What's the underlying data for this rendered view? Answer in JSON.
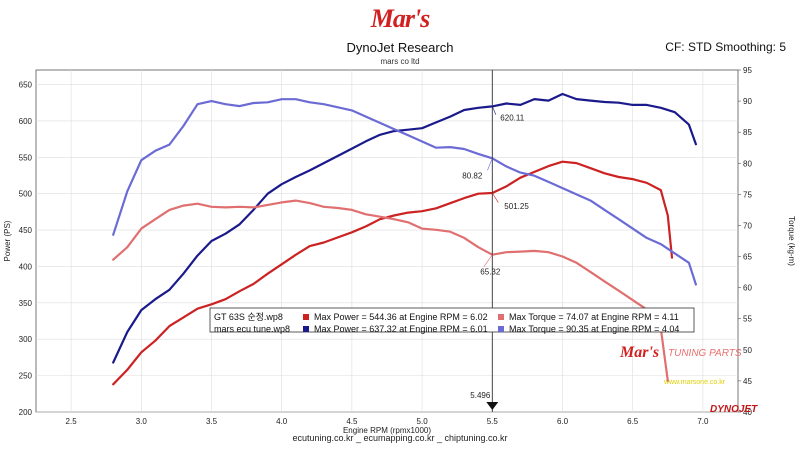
{
  "header": {
    "logo_text": "Mar's",
    "title": "DynoJet Research",
    "subtitle": "mars co ltd",
    "right_info": "CF: STD Smoothing: 5"
  },
  "footer": {
    "text": "ecutuning.co.kr _ ecumapping.co.kr _ chiptuning.co.kr"
  },
  "watermark": {
    "brand": "Mar's",
    "text": "TUNING PARTS",
    "url": "www.marsone.co.kr"
  },
  "dynojet_logo": "DYNOJET",
  "chart_data": {
    "type": "line",
    "xlabel": "Engine RPM (rpmx1000)",
    "ylabel_left": "Power (PS)",
    "ylabel_right": "Torque (kg-m)",
    "xlim": [
      2.25,
      7.25
    ],
    "ylim_left": [
      200,
      670
    ],
    "ylim_right": [
      40,
      95
    ],
    "x_ticks": [
      2.5,
      3.0,
      3.5,
      4.0,
      4.5,
      5.0,
      5.5,
      6.0,
      6.5,
      7.0
    ],
    "y_left_ticks": [
      200,
      250,
      300,
      350,
      400,
      450,
      500,
      550,
      600,
      650
    ],
    "y_right_ticks": [
      40,
      45,
      50,
      55,
      60,
      65,
      70,
      75,
      80,
      85,
      90,
      95
    ],
    "grid": true,
    "cursor": {
      "x": 5.5,
      "label": "5.496"
    },
    "cursor_values": [
      {
        "series": "mars ecu tune.wp8 power",
        "value": "620.11",
        "color": "#1a1a8c"
      },
      {
        "series": "mars ecu tune.wp8 torque",
        "value": "80.82",
        "color": "#6b6bd6"
      },
      {
        "series": "GT 63S power",
        "value": "501.25",
        "color": "#cc2222"
      },
      {
        "series": "GT 63S torque",
        "value": "65.32",
        "color": "#e07070"
      }
    ],
    "legend": [
      {
        "run": "GT 63S 순정.wp8",
        "power": "Max Power = 544.36 at Engine RPM = 6.02",
        "torque": "Max Torque = 74.07 at Engine RPM = 4.11",
        "power_color": "#cc2222",
        "torque_color": "#e07070"
      },
      {
        "run": "mars ecu tune.wp8",
        "power": "Max Power = 637.32 at Engine RPM = 6.01",
        "torque": "Max Torque = 90.35 at Engine RPM = 4.04",
        "power_color": "#1a1a8c",
        "torque_color": "#6b6bd6"
      }
    ],
    "series": [
      {
        "axis": "left",
        "color": "#1a1a8c",
        "x": [
          2.8,
          2.9,
          3.0,
          3.1,
          3.2,
          3.3,
          3.4,
          3.5,
          3.6,
          3.7,
          3.8,
          3.9,
          4.0,
          4.1,
          4.2,
          4.3,
          4.4,
          4.5,
          4.6,
          4.7,
          4.8,
          4.9,
          5.0,
          5.1,
          5.2,
          5.3,
          5.4,
          5.5,
          5.6,
          5.7,
          5.8,
          5.9,
          6.0,
          6.1,
          6.2,
          6.3,
          6.4,
          6.5,
          6.6,
          6.7,
          6.8,
          6.9,
          6.95
        ],
        "y": [
          268,
          310,
          340,
          355,
          368,
          390,
          415,
          435,
          445,
          458,
          478,
          500,
          513,
          523,
          532,
          542,
          552,
          562,
          572,
          581,
          586,
          588,
          590,
          598,
          606,
          615,
          618,
          620,
          624,
          622,
          630,
          628,
          637,
          630,
          628,
          626,
          625,
          622,
          622,
          618,
          612,
          595,
          568
        ]
      },
      {
        "axis": "left",
        "color": "#cc2222",
        "x": [
          2.8,
          2.9,
          3.0,
          3.1,
          3.2,
          3.3,
          3.4,
          3.5,
          3.6,
          3.7,
          3.8,
          3.9,
          4.0,
          4.1,
          4.2,
          4.3,
          4.4,
          4.5,
          4.6,
          4.7,
          4.8,
          4.9,
          5.0,
          5.1,
          5.2,
          5.3,
          5.4,
          5.5,
          5.6,
          5.7,
          5.8,
          5.9,
          6.0,
          6.1,
          6.2,
          6.3,
          6.4,
          6.5,
          6.6,
          6.7,
          6.75,
          6.78
        ],
        "y": [
          238,
          258,
          282,
          298,
          318,
          330,
          342,
          348,
          355,
          366,
          376,
          390,
          403,
          416,
          428,
          433,
          440,
          447,
          455,
          465,
          470,
          474,
          476,
          480,
          487,
          494,
          500,
          501,
          510,
          522,
          530,
          538,
          544,
          542,
          535,
          528,
          523,
          520,
          515,
          505,
          470,
          412
        ]
      },
      {
        "axis": "right",
        "color": "#6b6bd6",
        "x": [
          2.8,
          2.9,
          3.0,
          3.1,
          3.2,
          3.3,
          3.4,
          3.5,
          3.6,
          3.7,
          3.8,
          3.9,
          4.0,
          4.1,
          4.2,
          4.3,
          4.4,
          4.5,
          4.6,
          4.7,
          4.8,
          4.9,
          5.0,
          5.1,
          5.2,
          5.3,
          5.4,
          5.5,
          5.6,
          5.7,
          5.8,
          5.9,
          6.0,
          6.1,
          6.2,
          6.3,
          6.4,
          6.5,
          6.6,
          6.7,
          6.8,
          6.9,
          6.95
        ],
        "y": [
          68.5,
          75.5,
          80.5,
          82,
          83,
          86,
          89.5,
          90,
          89.5,
          89.2,
          89.7,
          89.8,
          90.3,
          90.3,
          89.8,
          89.5,
          89,
          88.5,
          87.5,
          86.5,
          85.5,
          84.5,
          83.5,
          82.5,
          82.6,
          82.3,
          81.5,
          80.8,
          79.5,
          78.5,
          78,
          77,
          76,
          75,
          74,
          72.5,
          71,
          69.5,
          68,
          67,
          65.5,
          64,
          60.5
        ]
      },
      {
        "axis": "right",
        "color": "#e07070",
        "x": [
          2.8,
          2.9,
          3.0,
          3.1,
          3.2,
          3.3,
          3.4,
          3.5,
          3.6,
          3.7,
          3.8,
          3.9,
          4.0,
          4.1,
          4.2,
          4.3,
          4.4,
          4.5,
          4.6,
          4.7,
          4.8,
          4.9,
          5.0,
          5.1,
          5.2,
          5.3,
          5.4,
          5.5,
          5.6,
          5.7,
          5.8,
          5.9,
          6.0,
          6.1,
          6.2,
          6.3,
          6.4,
          6.5,
          6.6,
          6.7,
          6.75
        ],
        "y": [
          64.5,
          66.5,
          69.5,
          71,
          72.5,
          73.2,
          73.5,
          73,
          72.9,
          73,
          72.9,
          73.3,
          73.7,
          74,
          73.6,
          73,
          72.8,
          72.5,
          71.8,
          71.4,
          71,
          70.5,
          69.5,
          69.3,
          69,
          68,
          66.5,
          65.3,
          65.7,
          65.8,
          65.9,
          65.7,
          65,
          64,
          62.5,
          61,
          59.5,
          58,
          56.5,
          53.5,
          45
        ]
      }
    ]
  }
}
